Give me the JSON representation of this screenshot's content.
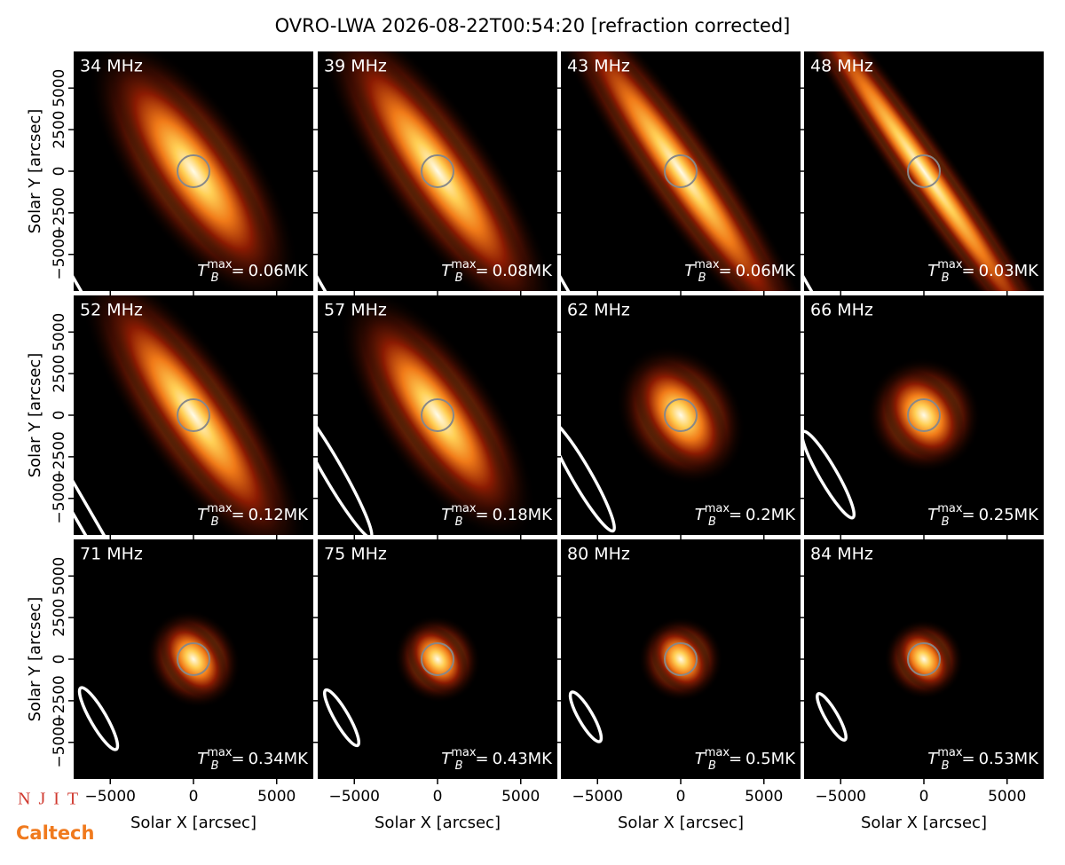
{
  "title": "OVRO-LWA 2026-08-22T00:54:20 [refraction corrected]",
  "logos": {
    "top": "NJIT",
    "bottom": "Caltech"
  },
  "axes": {
    "xlabel": "Solar X [arcsec]",
    "ylabel": "Solar Y [arcsec]",
    "xlim": [
      -7200,
      7200
    ],
    "ylim": [
      -7200,
      7200
    ],
    "xticks": [
      {
        "value": -5000,
        "label": "−5000"
      },
      0,
      5000
    ],
    "yticks": [
      {
        "value": -5000,
        "label": "−5000"
      },
      {
        "value": -2500,
        "label": "−2500"
      },
      0,
      2500,
      5000
    ],
    "tb_symbol": "T",
    "tb_sub": "B",
    "tb_sup": "max",
    "tb_eq": "="
  },
  "chart_data": [
    {
      "type": "image",
      "title": "34 MHz",
      "tb_max": 0.06,
      "tb_max_label": "0.06MK"
    },
    {
      "type": "image",
      "title": "39 MHz",
      "tb_max": 0.08,
      "tb_max_label": "0.08MK"
    },
    {
      "type": "image",
      "title": "43 MHz",
      "tb_max": 0.06,
      "tb_max_label": "0.06MK"
    },
    {
      "type": "image",
      "title": "48 MHz",
      "tb_max": 0.03,
      "tb_max_label": "0.03MK"
    },
    {
      "type": "image",
      "title": "52 MHz",
      "tb_max": 0.12,
      "tb_max_label": "0.12MK"
    },
    {
      "type": "image",
      "title": "57 MHz",
      "tb_max": 0.18,
      "tb_max_label": "0.18MK"
    },
    {
      "type": "image",
      "title": "62 MHz",
      "tb_max": 0.2,
      "tb_max_label": "0.2MK"
    },
    {
      "type": "image",
      "title": "66 MHz",
      "tb_max": 0.25,
      "tb_max_label": "0.25MK"
    },
    {
      "type": "image",
      "title": "71 MHz",
      "tb_max": 0.34,
      "tb_max_label": "0.34MK"
    },
    {
      "type": "image",
      "title": "75 MHz",
      "tb_max": 0.43,
      "tb_max_label": "0.43MK"
    },
    {
      "type": "image",
      "title": "80 MHz",
      "tb_max": 0.5,
      "tb_max_label": "0.5MK"
    },
    {
      "type": "image",
      "title": "84 MHz",
      "tb_max": 0.53,
      "tb_max_label": "0.53MK"
    }
  ]
}
